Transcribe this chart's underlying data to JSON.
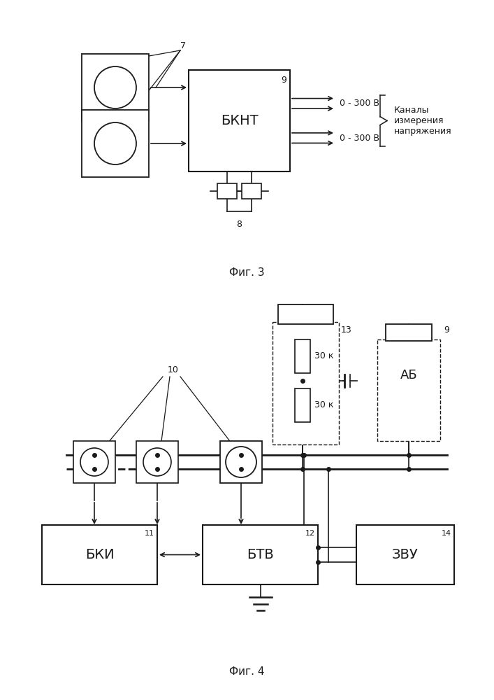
{
  "fig3": {
    "title": "Фиг. 3",
    "bknt_label": "БКНТ",
    "bknt_num": "9",
    "label_7": "7",
    "label_8": "8",
    "output1": "0 - 300 В",
    "output2": "0 - 300 В",
    "channels_label": "Каналы\nизмерения\nнапряжения"
  },
  "fig4": {
    "title": "Фиг. 4",
    "bki_label": "БКИ",
    "bki_num": "11",
    "btv_label": "БТВ",
    "btv_num": "12",
    "zvu_label": "ЗВУ",
    "zvu_num": "14",
    "ab_label": "АБ",
    "ab_num": "9",
    "label_10": "10",
    "label_13": "13",
    "res1_label": "30 к",
    "res2_label": "30 к"
  },
  "bg_color": "#ffffff",
  "line_color": "#1a1a1a"
}
